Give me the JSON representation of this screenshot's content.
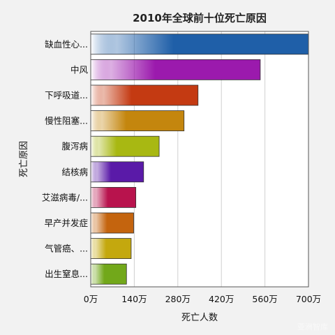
{
  "chart_data": {
    "type": "bar",
    "orientation": "horizontal",
    "title": "2010年全球前十位死亡原因",
    "xlabel": "死亡人数",
    "ylabel": "死亡原因",
    "categories": [
      "缺血性心...",
      "中风",
      "下呼吸道...",
      "慢性阻塞...",
      "腹泻病",
      "结核病",
      "艾滋病毒/...",
      "早产并发症",
      "气管癌、...",
      "出生窒息..."
    ],
    "values": [
      7000000,
      5450000,
      3450000,
      3000000,
      2200000,
      1700000,
      1450000,
      1380000,
      1300000,
      1150000
    ],
    "colors": [
      "#1f5fa8",
      "#9b1aad",
      "#c43a12",
      "#c4860e",
      "#a8b812",
      "#5a1aa8",
      "#b8134d",
      "#c4640e",
      "#c4a80e",
      "#72a81a"
    ],
    "xlim": [
      0,
      7000000
    ],
    "xticks": [
      0,
      1400000,
      2800000,
      4200000,
      5600000,
      7000000
    ],
    "xtick_labels": [
      "0万",
      "140万",
      "280万",
      "420万",
      "560万",
      "700万"
    ],
    "grid": true
  },
  "watermark": "亚洲智库"
}
